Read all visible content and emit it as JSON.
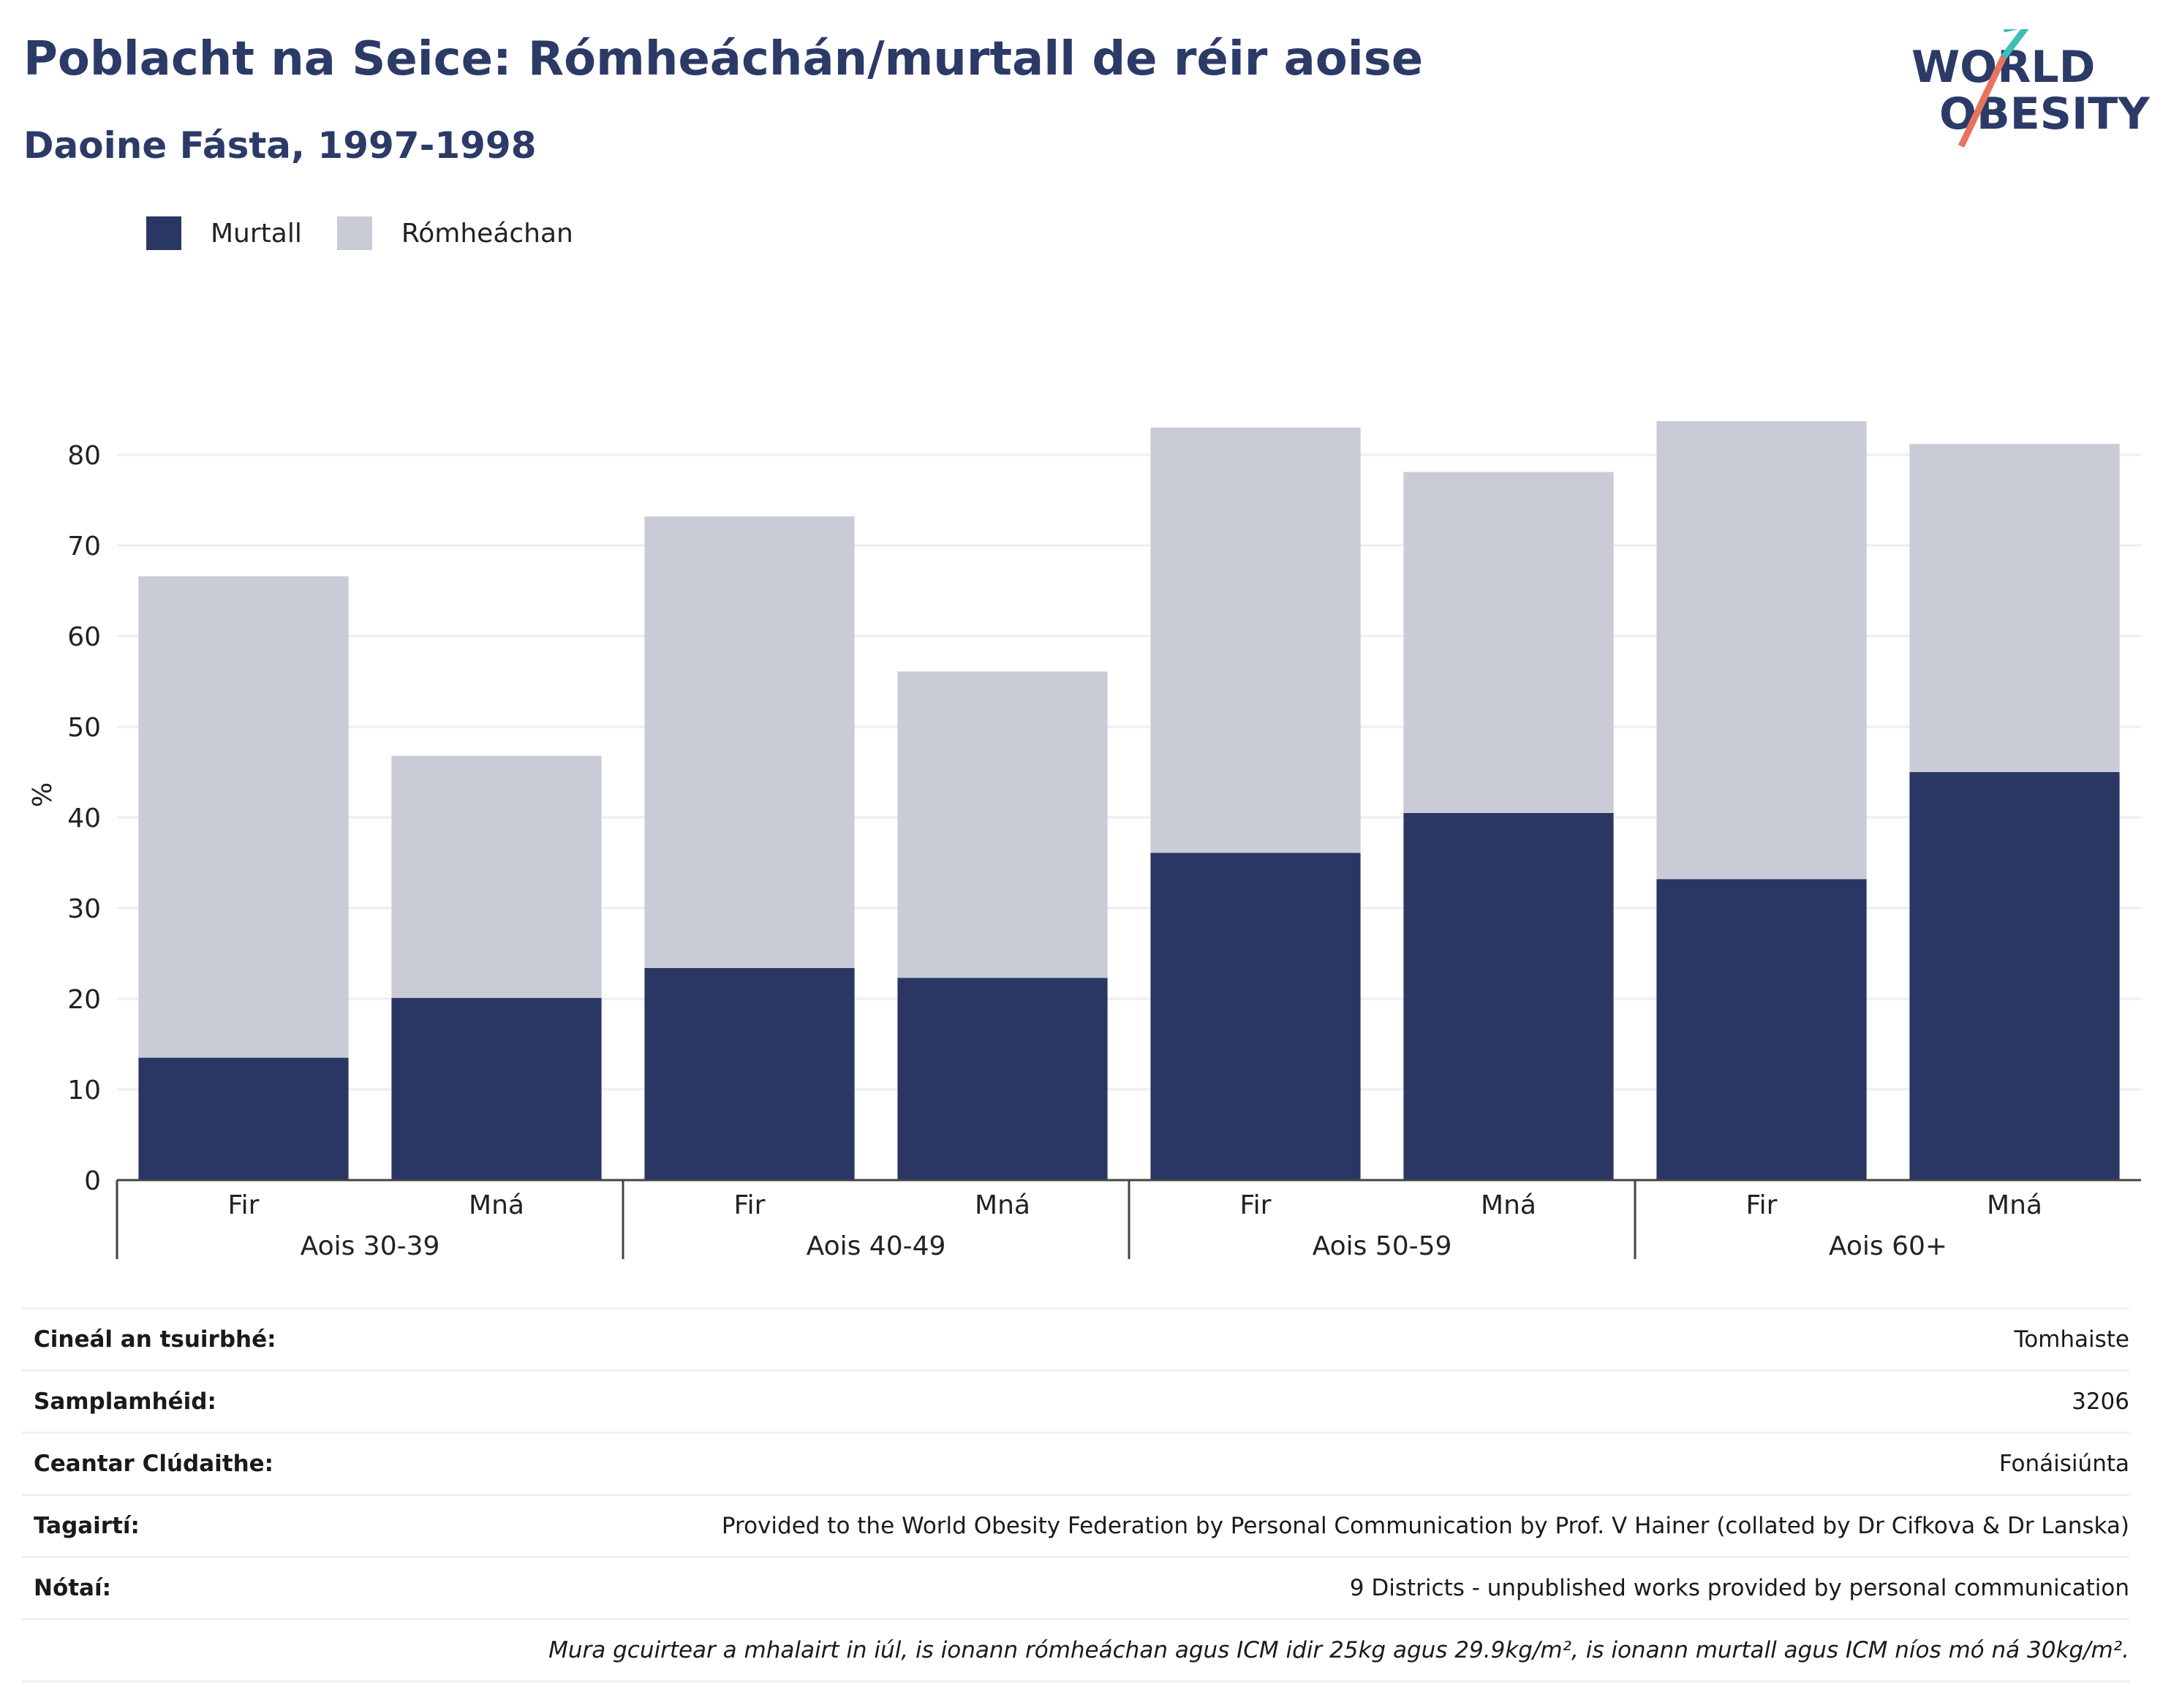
{
  "header": {
    "title": "Poblacht na Seice: Rómheáchán/murtall de réir aoise",
    "subtitle": "Daoine Fásta, 1997-1998",
    "logo_line1": "WORLD",
    "logo_line2": "OBESITY"
  },
  "colors": {
    "obese": "#2a3663",
    "overweight": "#c9cbd7",
    "text": "#2b3a67",
    "logo_teal": "#3cbfb4",
    "logo_coral": "#e8735f"
  },
  "chart_data": {
    "type": "bar",
    "stacked": true,
    "ylabel": "%",
    "ylim": [
      0,
      85
    ],
    "yticks": [
      0,
      10,
      20,
      30,
      40,
      50,
      60,
      70,
      80
    ],
    "grid": true,
    "legend_position": "top-left",
    "groups": [
      "Aois 30-39",
      "Aois 40-49",
      "Aois 50-59",
      "Aois 60+"
    ],
    "categories": [
      "Fir",
      "Mná",
      "Fir",
      "Mná",
      "Fir",
      "Mná",
      "Fir",
      "Mná"
    ],
    "series": [
      {
        "name": "Murtall",
        "values": [
          13.5,
          20.1,
          23.4,
          22.3,
          36.1,
          40.5,
          33.2,
          45.0
        ]
      },
      {
        "name": "Rómheáchan",
        "values": [
          53.1,
          26.7,
          49.8,
          33.8,
          46.9,
          37.6,
          50.5,
          36.2
        ]
      }
    ]
  },
  "info": {
    "survey_type_label": "Cineál an tsuirbhé:",
    "survey_type_value": "Tomhaiste",
    "sample_size_label": "Samplamhéid:",
    "sample_size_value": "3206",
    "area_label": "Ceantar Clúdaithe:",
    "area_value": "Fonáisiúnta",
    "references_label": "Tagairtí:",
    "references_value": "Provided to the World Obesity Federation by Personal Communication by Prof. V Hainer (collated by Dr Cifkova & Dr Lanska)",
    "notes_label": "Nótaí:",
    "notes_value": "9 Districts - unpublished works provided by personal communication",
    "footnote": "Mura gcuirtear a mhalairt in iúl, is ionann rómheáchan agus ICM idir 25kg agus 29.9kg/m², is ionann murtall agus ICM níos mó ná 30kg/m²."
  }
}
